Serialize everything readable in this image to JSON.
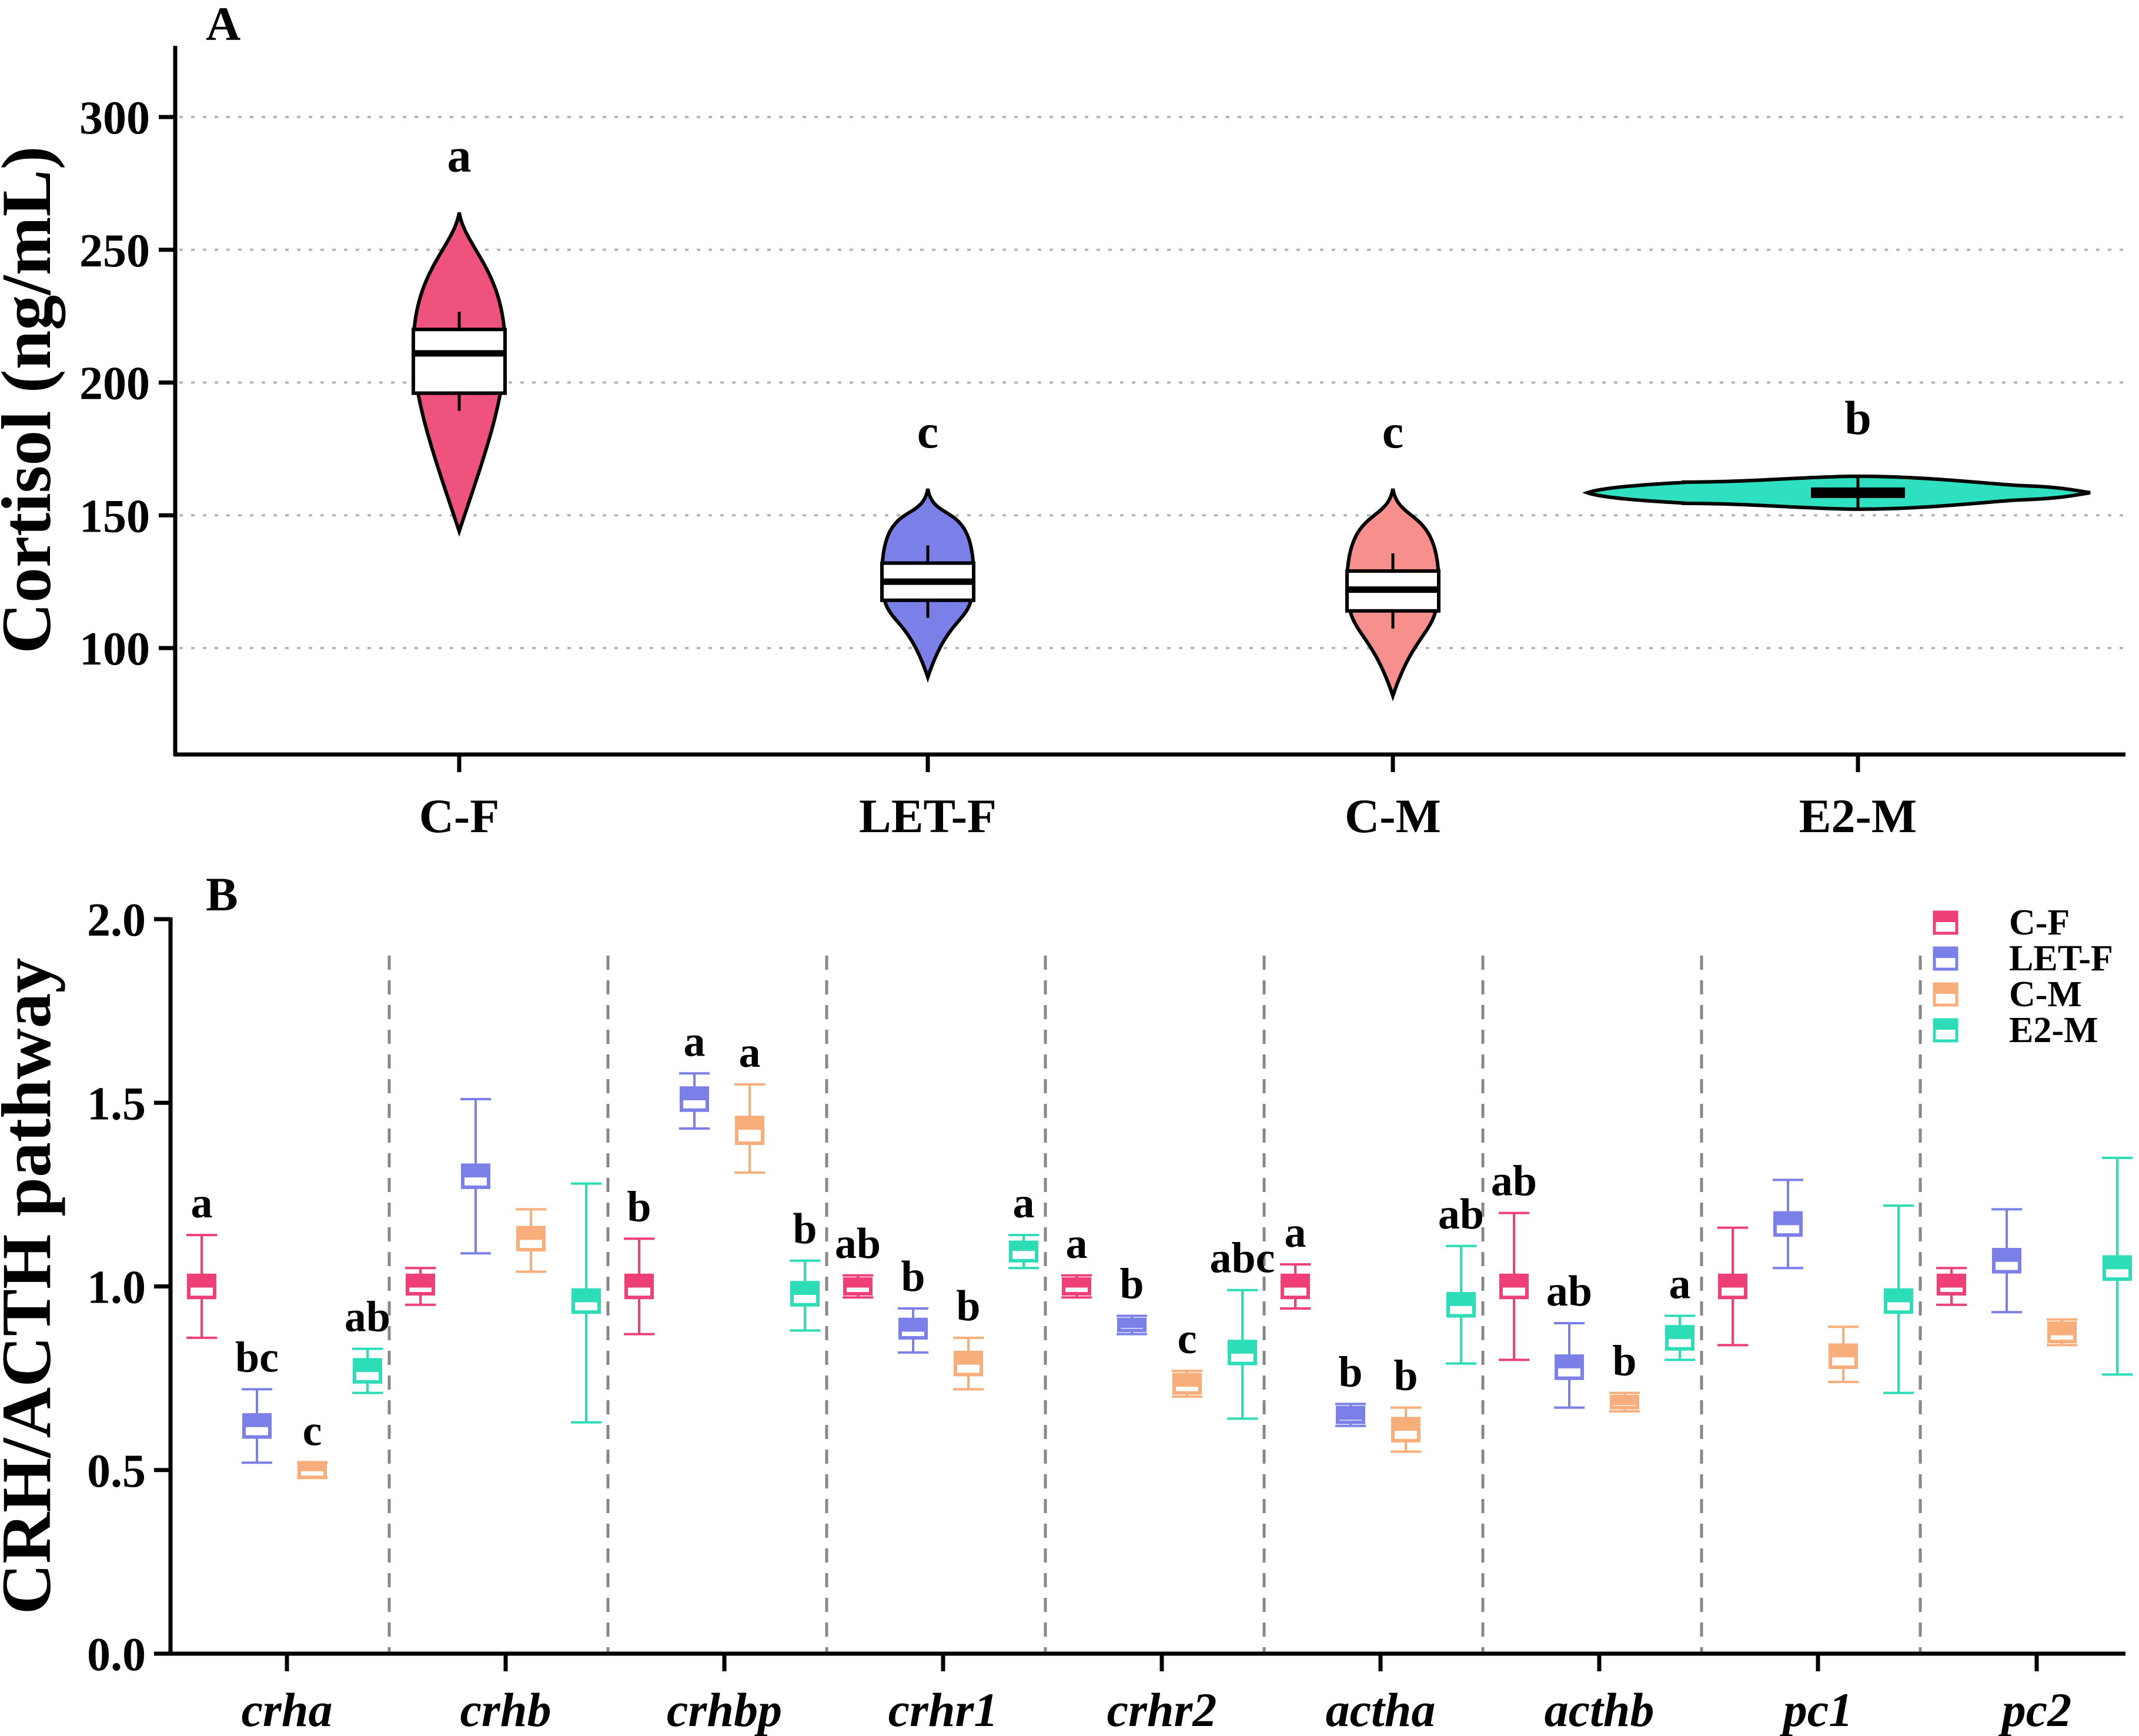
{
  "panel_a": {
    "panel_label": "A",
    "chart_data": {
      "type": "violin",
      "ylabel": "Cortisol (ng/mL)",
      "ylim": [
        70,
        325
      ],
      "yticks": [
        100,
        150,
        200,
        250,
        300
      ],
      "grid": "horizontal-dotted",
      "categories": [
        "C-F",
        "LET-F",
        "C-M",
        "E2-M"
      ],
      "colors": [
        "#F0527E",
        "#7B7FE8",
        "#F78F8C",
        "#2FE0C0"
      ],
      "violins": [
        {
          "name": "C-F",
          "min": 144,
          "max": 264,
          "q1": 196,
          "median": 211,
          "q3": 220,
          "letter": "a"
        },
        {
          "name": "LET-F",
          "min": 89,
          "max": 160,
          "q1": 118,
          "median": 125,
          "q3": 132,
          "letter": "c"
        },
        {
          "name": "C-M",
          "min": 82,
          "max": 160,
          "q1": 114,
          "median": 122,
          "q3": 129,
          "letter": "c"
        },
        {
          "name": "E2-M",
          "min": 153,
          "max": 164,
          "q1": 157,
          "median": 158.5,
          "q3": 160,
          "letter": "b"
        }
      ]
    }
  },
  "panel_b": {
    "panel_label": "B",
    "chart_data": {
      "type": "box",
      "ylabel": "CRH/ACTH pathway",
      "ylim": [
        0,
        2.0
      ],
      "yticks": [
        "0.0",
        "0.5",
        "1.0",
        "1.5",
        "2.0"
      ],
      "categories": [
        "crha",
        "crhb",
        "crhbp",
        "crhr1",
        "crhr2",
        "actha",
        "acthb",
        "pc1",
        "pc2"
      ],
      "legend": {
        "position": "top-right",
        "entries": [
          "C-F",
          "LET-F",
          "C-M",
          "E2-M"
        ]
      },
      "colors": [
        "#EE3F77",
        "#7B7FE8",
        "#F8AE7A",
        "#2DDDB8"
      ],
      "series": [
        {
          "name": "C-F",
          "boxes": [
            {
              "min": 0.86,
              "q1": 0.97,
              "median": 1.0,
              "q3": 1.03,
              "max": 1.14,
              "letter": "a"
            },
            {
              "min": 0.95,
              "q1": 0.98,
              "median": 1.0,
              "q3": 1.03,
              "max": 1.05,
              "letter": ""
            },
            {
              "min": 0.87,
              "q1": 0.97,
              "median": 1.0,
              "q3": 1.03,
              "max": 1.13,
              "letter": "b"
            },
            {
              "min": 0.97,
              "q1": 0.98,
              "median": 1.0,
              "q3": 1.02,
              "max": 1.03,
              "letter": "ab"
            },
            {
              "min": 0.97,
              "q1": 0.98,
              "median": 1.0,
              "q3": 1.02,
              "max": 1.03,
              "letter": "a"
            },
            {
              "min": 0.94,
              "q1": 0.97,
              "median": 1.0,
              "q3": 1.03,
              "max": 1.06,
              "letter": "a"
            },
            {
              "min": 0.8,
              "q1": 0.97,
              "median": 1.0,
              "q3": 1.03,
              "max": 1.2,
              "letter": "ab"
            },
            {
              "min": 0.84,
              "q1": 0.97,
              "median": 1.0,
              "q3": 1.03,
              "max": 1.16,
              "letter": ""
            },
            {
              "min": 0.95,
              "q1": 0.98,
              "median": 1.0,
              "q3": 1.03,
              "max": 1.05,
              "letter": ""
            }
          ]
        },
        {
          "name": "LET-F",
          "boxes": [
            {
              "min": 0.52,
              "q1": 0.59,
              "median": 0.62,
              "q3": 0.65,
              "max": 0.72,
              "letter": "bc"
            },
            {
              "min": 1.09,
              "q1": 1.27,
              "median": 1.3,
              "q3": 1.33,
              "max": 1.51,
              "letter": ""
            },
            {
              "min": 1.43,
              "q1": 1.48,
              "median": 1.51,
              "q3": 1.54,
              "max": 1.58,
              "letter": "a"
            },
            {
              "min": 0.82,
              "q1": 0.86,
              "median": 0.88,
              "q3": 0.91,
              "max": 0.94,
              "letter": "b"
            },
            {
              "min": 0.87,
              "q1": 0.88,
              "median": 0.89,
              "q3": 0.91,
              "max": 0.92,
              "letter": "b"
            },
            {
              "min": 0.62,
              "q1": 0.63,
              "median": 0.64,
              "q3": 0.67,
              "max": 0.68,
              "letter": "b"
            },
            {
              "min": 0.67,
              "q1": 0.75,
              "median": 0.78,
              "q3": 0.81,
              "max": 0.9,
              "letter": "ab"
            },
            {
              "min": 1.05,
              "q1": 1.14,
              "median": 1.17,
              "q3": 1.2,
              "max": 1.29,
              "letter": ""
            },
            {
              "min": 0.93,
              "q1": 1.04,
              "median": 1.07,
              "q3": 1.1,
              "max": 1.21,
              "letter": ""
            }
          ]
        },
        {
          "name": "C-M",
          "boxes": [
            {
              "min": 0.48,
              "q1": 0.48,
              "median": 0.5,
              "q3": 0.52,
              "max": 0.52,
              "letter": "c"
            },
            {
              "min": 1.04,
              "q1": 1.1,
              "median": 1.13,
              "q3": 1.16,
              "max": 1.21,
              "letter": ""
            },
            {
              "min": 1.31,
              "q1": 1.39,
              "median": 1.43,
              "q3": 1.46,
              "max": 1.55,
              "letter": "a"
            },
            {
              "min": 0.72,
              "q1": 0.76,
              "median": 0.79,
              "q3": 0.82,
              "max": 0.86,
              "letter": "b"
            },
            {
              "min": 0.7,
              "q1": 0.71,
              "median": 0.73,
              "q3": 0.76,
              "max": 0.77,
              "letter": "c"
            },
            {
              "min": 0.55,
              "q1": 0.58,
              "median": 0.61,
              "q3": 0.64,
              "max": 0.67,
              "letter": "b"
            },
            {
              "min": 0.66,
              "q1": 0.67,
              "median": 0.68,
              "q3": 0.7,
              "max": 0.71,
              "letter": "b"
            },
            {
              "min": 0.74,
              "q1": 0.78,
              "median": 0.81,
              "q3": 0.84,
              "max": 0.89,
              "letter": ""
            },
            {
              "min": 0.84,
              "q1": 0.85,
              "median": 0.87,
              "q3": 0.9,
              "max": 0.91,
              "letter": ""
            }
          ]
        },
        {
          "name": "E2-M",
          "boxes": [
            {
              "min": 0.71,
              "q1": 0.74,
              "median": 0.77,
              "q3": 0.8,
              "max": 0.83,
              "letter": "ab"
            },
            {
              "min": 0.63,
              "q1": 0.93,
              "median": 0.96,
              "q3": 0.99,
              "max": 1.28,
              "letter": ""
            },
            {
              "min": 0.88,
              "q1": 0.95,
              "median": 0.98,
              "q3": 1.01,
              "max": 1.07,
              "letter": "b"
            },
            {
              "min": 1.05,
              "q1": 1.07,
              "median": 1.1,
              "q3": 1.12,
              "max": 1.14,
              "letter": "a"
            },
            {
              "min": 0.64,
              "q1": 0.79,
              "median": 0.82,
              "q3": 0.85,
              "max": 0.99,
              "letter": "abc"
            },
            {
              "min": 0.79,
              "q1": 0.92,
              "median": 0.95,
              "q3": 0.98,
              "max": 1.11,
              "letter": "ab"
            },
            {
              "min": 0.8,
              "q1": 0.83,
              "median": 0.86,
              "q3": 0.89,
              "max": 0.92,
              "letter": "a"
            },
            {
              "min": 0.71,
              "q1": 0.93,
              "median": 0.96,
              "q3": 0.99,
              "max": 1.22,
              "letter": ""
            },
            {
              "min": 0.76,
              "q1": 1.02,
              "median": 1.05,
              "q3": 1.08,
              "max": 1.35,
              "letter": ""
            }
          ]
        }
      ]
    }
  }
}
